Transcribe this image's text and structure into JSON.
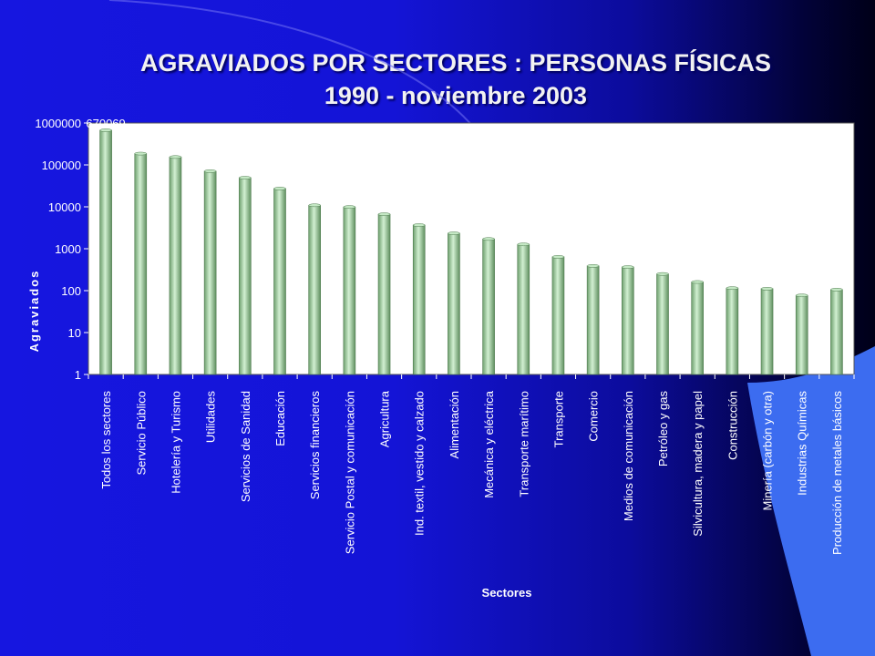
{
  "chart_data": {
    "type": "bar",
    "title": "AGRAVIADOS POR SECTORES :  PERSONAS FÍSICAS",
    "subtitle": "1990 - noviembre 2003",
    "xlabel": "Sectores",
    "ylabel": "Agraviados",
    "yscale": "log",
    "ylim": [
      1,
      1000000
    ],
    "yticks": [
      "1",
      "10",
      "100",
      "1000",
      "10000",
      "100000",
      "1000000"
    ],
    "categories": [
      "Todos los sectores",
      "Servicio Público",
      "Hotelería y Turismo",
      "Utilidades",
      "Servicios de Sanidad",
      "Educación",
      "Servicios financieros",
      "Servicio Postal y comunicación",
      "Agricultura",
      "Ind. textil, vestido y calzado",
      "Alimentación",
      "Mecánica y eléctrica",
      "Transporte marítimo",
      "Transporte",
      "Comercio",
      "Medios de comunicación",
      "Petróleo y gas",
      "Silvicultura, madera y papel",
      "Construcción",
      "Minería (carbón y otra)",
      "Industrias Químicas",
      "Producción de metales básicos"
    ],
    "values": [
      670069,
      186305,
      154229,
      70898,
      49393,
      27238,
      10894,
      9909,
      6660,
      3664,
      2332,
      1709,
      1270,
      639,
      389,
      365,
      250,
      161,
      115,
      111,
      77,
      106
    ],
    "bar_color": "#a6d8a6",
    "plot_background": "#ffffff",
    "grid": false,
    "legend": "none"
  }
}
